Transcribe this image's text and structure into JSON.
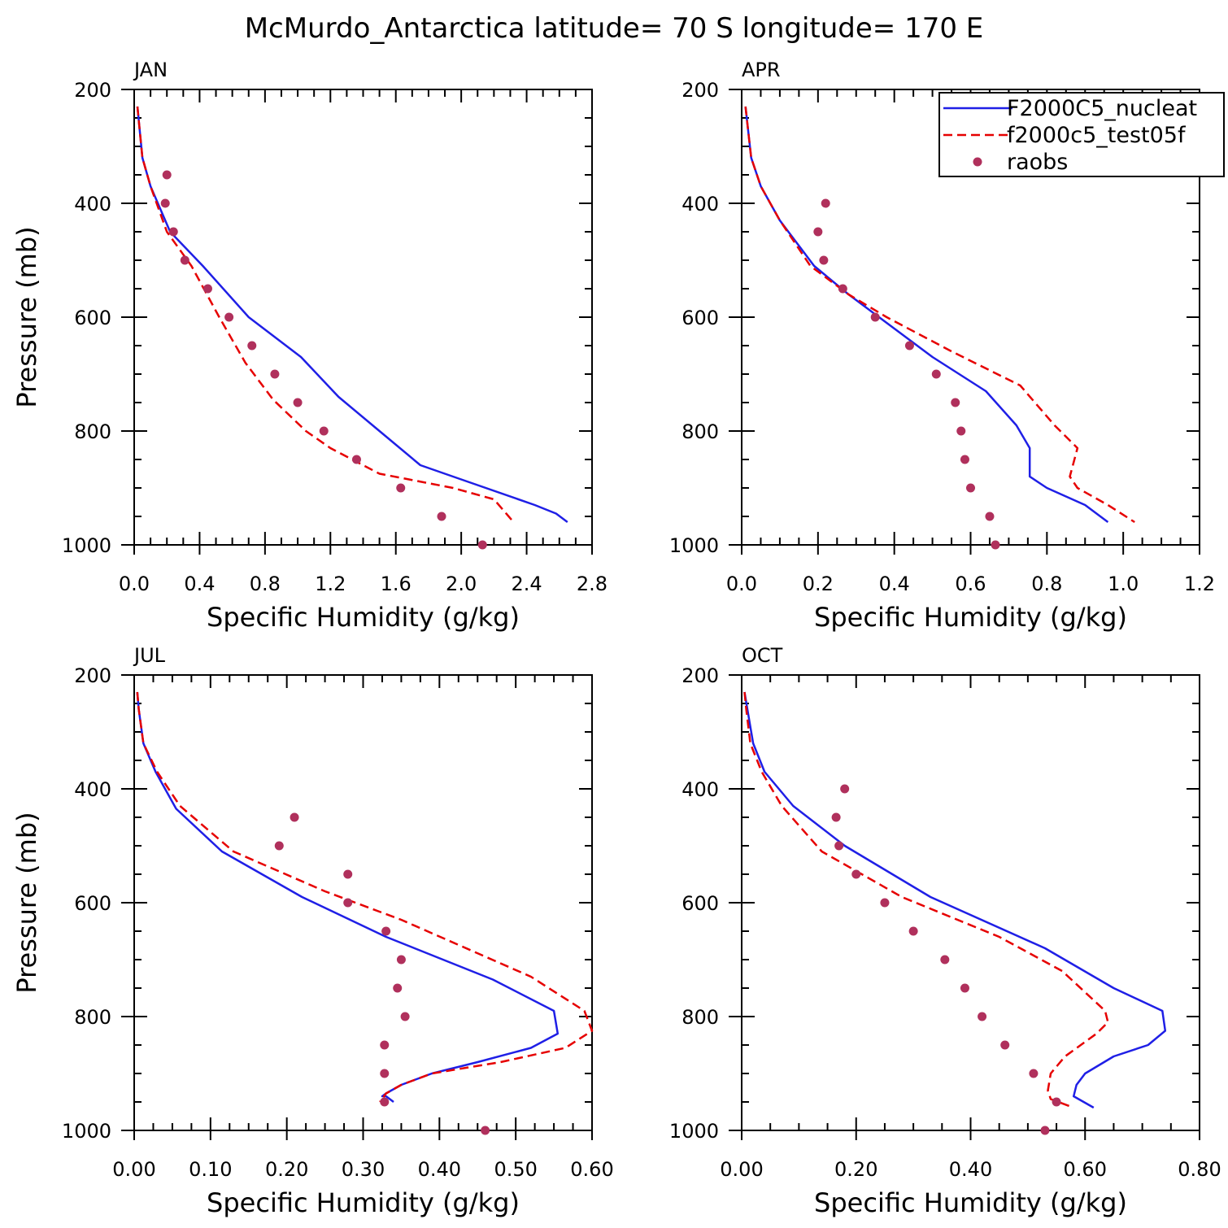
{
  "figure": {
    "title": "McMurdo_Antarctica  latitude= 70 S longitude= 170 E"
  },
  "colors": {
    "model_a": "#1f1fe6",
    "model_b": "#e60000",
    "obs": "#b0305c"
  },
  "legend": {
    "entries": [
      "F2000C5_nucleat",
      "f2000c5_test05f",
      "raobs"
    ]
  },
  "chart_data": [
    {
      "type": "line",
      "panel": "JAN",
      "title": "JAN",
      "xlabel": "Specific Humidity (g/kg)",
      "ylabel": "Pressure (mb)",
      "xlim": [
        0,
        2.8
      ],
      "ylim": [
        200,
        1000
      ],
      "xticks": [
        0.0,
        0.4,
        0.8,
        1.2,
        1.6,
        2.0,
        2.4,
        2.8
      ],
      "xtick_labels": [
        "0.0",
        "0.4",
        "0.8",
        "1.2",
        "1.6",
        "2.0",
        "2.4",
        "2.8"
      ],
      "ytick_labels": [
        "200",
        "400",
        "600",
        "800",
        "1000"
      ],
      "y_inverted": true,
      "series": [
        {
          "name": "F2000C5_nucleat",
          "style": "solid",
          "x": [
            0.02,
            0.03,
            0.05,
            0.1,
            0.22,
            0.42,
            0.7,
            1.02,
            1.25,
            1.5,
            1.75,
            2.0,
            2.45,
            2.58,
            2.65
          ],
          "y": [
            230,
            260,
            320,
            370,
            450,
            510,
            600,
            670,
            740,
            800,
            860,
            885,
            930,
            945,
            960
          ]
        },
        {
          "name": "f2000c5_test05f",
          "style": "dashed",
          "x": [
            0.02,
            0.03,
            0.05,
            0.1,
            0.2,
            0.35,
            0.52,
            0.68,
            0.85,
            1.05,
            1.2,
            1.5,
            1.95,
            2.2,
            2.32
          ],
          "y": [
            230,
            260,
            320,
            370,
            450,
            510,
            600,
            680,
            745,
            800,
            830,
            875,
            900,
            920,
            960
          ]
        },
        {
          "name": "raobs",
          "style": "points",
          "x": [
            0.2,
            0.19,
            0.24,
            0.31,
            0.45,
            0.58,
            0.72,
            0.86,
            1.0,
            1.16,
            1.36,
            1.63,
            1.88,
            2.13
          ],
          "y": [
            350,
            400,
            450,
            500,
            550,
            600,
            650,
            700,
            750,
            800,
            850,
            900,
            950,
            1000
          ]
        }
      ]
    },
    {
      "type": "line",
      "panel": "APR",
      "title": "APR",
      "xlabel": "Specific Humidity (g/kg)",
      "ylabel": "",
      "xlim": [
        0,
        1.2
      ],
      "ylim": [
        200,
        1000
      ],
      "xticks": [
        0.0,
        0.2,
        0.4,
        0.6,
        0.8,
        1.0,
        1.2
      ],
      "xtick_labels": [
        "0.0",
        "0.2",
        "0.4",
        "0.6",
        "0.8",
        "1.0",
        "1.2"
      ],
      "ytick_labels": [
        "200",
        "400",
        "600",
        "800",
        "1000"
      ],
      "y_inverted": true,
      "series": [
        {
          "name": "F2000C5_nucleat",
          "style": "solid",
          "x": [
            0.01,
            0.015,
            0.025,
            0.05,
            0.1,
            0.19,
            0.28,
            0.36,
            0.5,
            0.64,
            0.72,
            0.755,
            0.755,
            0.8,
            0.9,
            0.96
          ],
          "y": [
            230,
            260,
            320,
            370,
            430,
            510,
            560,
            600,
            670,
            730,
            790,
            830,
            880,
            900,
            930,
            960
          ]
        },
        {
          "name": "f2000c5_test05f",
          "style": "dashed",
          "x": [
            0.01,
            0.015,
            0.025,
            0.05,
            0.1,
            0.18,
            0.28,
            0.38,
            0.55,
            0.73,
            0.82,
            0.88,
            0.86,
            0.88,
            0.96,
            1.03
          ],
          "y": [
            230,
            260,
            320,
            370,
            430,
            510,
            560,
            600,
            660,
            720,
            790,
            830,
            880,
            900,
            930,
            960
          ]
        },
        {
          "name": "raobs",
          "style": "points",
          "x": [
            0.22,
            0.2,
            0.215,
            0.265,
            0.35,
            0.44,
            0.51,
            0.56,
            0.575,
            0.585,
            0.6,
            0.65,
            0.665
          ],
          "y": [
            400,
            450,
            500,
            550,
            600,
            650,
            700,
            750,
            800,
            850,
            900,
            950,
            1000
          ]
        }
      ]
    },
    {
      "type": "line",
      "panel": "JUL",
      "title": "JUL",
      "xlabel": "Specific Humidity (g/kg)",
      "ylabel": "Pressure (mb)",
      "xlim": [
        0,
        0.6
      ],
      "ylim": [
        200,
        1000
      ],
      "xticks": [
        0.0,
        0.1,
        0.2,
        0.3,
        0.4,
        0.5,
        0.6
      ],
      "xtick_labels": [
        "0.00",
        "0.10",
        "0.20",
        "0.30",
        "0.40",
        "0.50",
        "0.60"
      ],
      "ytick_labels": [
        "200",
        "400",
        "600",
        "800",
        "1000"
      ],
      "y_inverted": true,
      "series": [
        {
          "name": "F2000C5_nucleat",
          "style": "solid",
          "x": [
            0.004,
            0.006,
            0.012,
            0.028,
            0.055,
            0.115,
            0.22,
            0.33,
            0.47,
            0.55,
            0.555,
            0.52,
            0.45,
            0.39,
            0.35,
            0.33,
            0.325,
            0.33,
            0.34
          ],
          "y": [
            230,
            260,
            320,
            370,
            435,
            510,
            590,
            660,
            735,
            790,
            830,
            855,
            880,
            900,
            920,
            935,
            940,
            940,
            950
          ]
        },
        {
          "name": "f2000c5_test05f",
          "style": "dashed",
          "x": [
            0.004,
            0.006,
            0.012,
            0.03,
            0.06,
            0.13,
            0.25,
            0.35,
            0.52,
            0.59,
            0.6,
            0.565,
            0.48,
            0.39,
            0.35,
            0.33,
            0.322
          ],
          "y": [
            230,
            260,
            320,
            370,
            430,
            510,
            580,
            630,
            730,
            790,
            825,
            855,
            880,
            900,
            920,
            935,
            950
          ]
        },
        {
          "name": "raobs",
          "style": "points",
          "x": [
            0.21,
            0.19,
            0.28,
            0.28,
            0.33,
            0.35,
            0.345,
            0.355,
            0.328,
            0.328,
            0.328,
            0.46
          ],
          "y": [
            450,
            500,
            550,
            600,
            650,
            700,
            750,
            800,
            850,
            900,
            950,
            1000
          ]
        }
      ]
    },
    {
      "type": "line",
      "panel": "OCT",
      "title": "OCT",
      "xlabel": "Specific Humidity (g/kg)",
      "ylabel": "",
      "xlim": [
        0,
        0.8
      ],
      "ylim": [
        200,
        1000
      ],
      "xticks": [
        0.0,
        0.2,
        0.4,
        0.6,
        0.8
      ],
      "xtick_labels": [
        "0.00",
        "0.20",
        "0.40",
        "0.60",
        "0.80"
      ],
      "ytick_labels": [
        "200",
        "400",
        "600",
        "800",
        "1000"
      ],
      "y_inverted": true,
      "series": [
        {
          "name": "F2000C5_nucleat",
          "style": "solid",
          "x": [
            0.005,
            0.01,
            0.02,
            0.04,
            0.09,
            0.18,
            0.33,
            0.53,
            0.65,
            0.735,
            0.74,
            0.71,
            0.65,
            0.6,
            0.585,
            0.58,
            0.615
          ],
          "y": [
            230,
            260,
            320,
            370,
            430,
            500,
            590,
            680,
            750,
            790,
            825,
            850,
            870,
            900,
            920,
            940,
            960
          ]
        },
        {
          "name": "f2000c5_test05f",
          "style": "dashed",
          "x": [
            0.005,
            0.008,
            0.015,
            0.035,
            0.07,
            0.14,
            0.28,
            0.45,
            0.56,
            0.635,
            0.64,
            0.62,
            0.565,
            0.54,
            0.535,
            0.54,
            0.58
          ],
          "y": [
            230,
            260,
            320,
            370,
            430,
            510,
            590,
            660,
            720,
            790,
            810,
            830,
            870,
            900,
            930,
            945,
            960
          ]
        },
        {
          "name": "raobs",
          "style": "points",
          "x": [
            0.18,
            0.165,
            0.17,
            0.2,
            0.25,
            0.3,
            0.355,
            0.39,
            0.42,
            0.46,
            0.51,
            0.55,
            0.53
          ],
          "y": [
            400,
            450,
            500,
            550,
            600,
            650,
            700,
            750,
            800,
            850,
            900,
            950,
            1000
          ]
        }
      ]
    }
  ]
}
